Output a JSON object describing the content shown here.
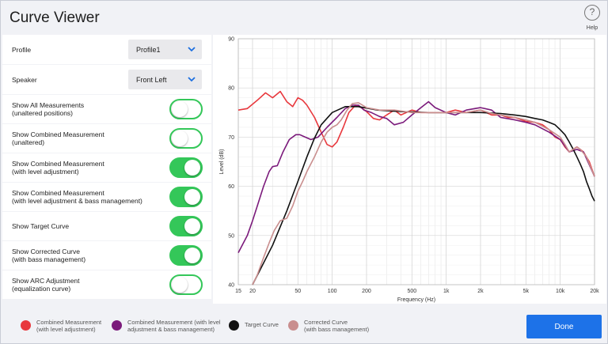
{
  "window": {
    "title": "Curve Viewer",
    "help_icon": "?",
    "help_label": "Help"
  },
  "settings": {
    "profile": {
      "label": "Profile",
      "value": "Profile1"
    },
    "speaker": {
      "label": "Speaker",
      "value": "Front Left"
    },
    "toggles": [
      {
        "label": "Show All Measurements",
        "sub": "(unaltered  positions)",
        "on": false
      },
      {
        "label": "Show Combined Measurement",
        "sub": "(unaltered)",
        "on": false
      },
      {
        "label": "Show Combined Measurement",
        "sub": "(with level adjustment)",
        "on": true
      },
      {
        "label": "Show Combined Measurement",
        "sub": "(with level adjustment & bass management)",
        "on": true
      },
      {
        "label": "Show Target Curve",
        "sub": "",
        "on": true
      },
      {
        "label": "Show Corrected Curve",
        "sub": "(with bass management)",
        "on": true
      },
      {
        "label": "Show ARC Adjustment",
        "sub": "(equalization curve)",
        "on": false
      }
    ]
  },
  "chart_data": {
    "type": "line",
    "xscale": "log",
    "xlim": [
      15,
      20000
    ],
    "ylim": [
      40,
      90
    ],
    "xlabel": "Frequency (Hz)",
    "ylabel": "Level (dB)",
    "x_ticks": [
      "15",
      "20",
      "50",
      "100",
      "200",
      "500",
      "1k",
      "2k",
      "5k",
      "10k",
      "20k"
    ],
    "x_tick_values": [
      15,
      20,
      50,
      100,
      200,
      500,
      1000,
      2000,
      5000,
      10000,
      20000
    ],
    "y_ticks": [
      40,
      50,
      60,
      70,
      80,
      90
    ],
    "grid": true,
    "series": [
      {
        "name": "Combined Measurement (with level adjustment)",
        "color": "#e8383d",
        "points": [
          [
            15,
            75.5
          ],
          [
            18,
            75.8
          ],
          [
            22,
            77.5
          ],
          [
            26,
            79
          ],
          [
            30,
            78
          ],
          [
            35,
            79.3
          ],
          [
            40,
            77.2
          ],
          [
            45,
            76.2
          ],
          [
            50,
            78
          ],
          [
            55,
            77.5
          ],
          [
            60,
            76.5
          ],
          [
            70,
            74
          ],
          [
            80,
            71
          ],
          [
            90,
            68.5
          ],
          [
            100,
            68
          ],
          [
            110,
            69
          ],
          [
            125,
            72
          ],
          [
            140,
            75
          ],
          [
            160,
            76.5
          ],
          [
            180,
            76
          ],
          [
            200,
            75.2
          ],
          [
            230,
            73.8
          ],
          [
            260,
            73.5
          ],
          [
            300,
            74.5
          ],
          [
            350,
            75.5
          ],
          [
            400,
            74.5
          ],
          [
            500,
            75.5
          ],
          [
            600,
            75
          ],
          [
            700,
            75
          ],
          [
            800,
            75
          ],
          [
            1000,
            75
          ],
          [
            1200,
            75.5
          ],
          [
            1500,
            75
          ],
          [
            2000,
            75.5
          ],
          [
            2500,
            74.5
          ],
          [
            3000,
            74.5
          ],
          [
            3500,
            74
          ],
          [
            4000,
            74
          ],
          [
            5000,
            73.2
          ],
          [
            6000,
            73
          ],
          [
            7000,
            72.5
          ],
          [
            8000,
            71.5
          ],
          [
            9000,
            70
          ],
          [
            10000,
            69.5
          ],
          [
            11000,
            68
          ],
          [
            12000,
            67
          ],
          [
            13000,
            67.5
          ],
          [
            14000,
            68
          ],
          [
            15000,
            67.5
          ],
          [
            16000,
            67
          ],
          [
            18000,
            65
          ],
          [
            20000,
            62
          ]
        ]
      },
      {
        "name": "Combined Measurement (with level adjustment & bass management)",
        "color": "#7b1a7b",
        "points": [
          [
            15,
            46.5
          ],
          [
            18,
            50
          ],
          [
            20,
            53
          ],
          [
            22,
            56
          ],
          [
            25,
            60
          ],
          [
            28,
            63
          ],
          [
            30,
            64
          ],
          [
            33,
            64.2
          ],
          [
            37,
            67
          ],
          [
            42,
            69.5
          ],
          [
            48,
            70.5
          ],
          [
            52,
            70.5
          ],
          [
            58,
            70
          ],
          [
            65,
            69.5
          ],
          [
            75,
            70
          ],
          [
            90,
            72
          ],
          [
            110,
            74
          ],
          [
            130,
            75.8
          ],
          [
            150,
            76.5
          ],
          [
            170,
            76.5
          ],
          [
            190,
            75.5
          ],
          [
            220,
            75
          ],
          [
            260,
            74.2
          ],
          [
            300,
            73.8
          ],
          [
            350,
            72.5
          ],
          [
            420,
            73
          ],
          [
            500,
            74.5
          ],
          [
            600,
            76
          ],
          [
            700,
            77.2
          ],
          [
            800,
            76
          ],
          [
            1000,
            75
          ],
          [
            1200,
            74.5
          ],
          [
            1500,
            75.5
          ],
          [
            2000,
            76
          ],
          [
            2500,
            75.5
          ],
          [
            3000,
            74
          ],
          [
            4000,
            73.5
          ],
          [
            5000,
            73
          ],
          [
            6000,
            72.5
          ],
          [
            8000,
            71
          ],
          [
            10000,
            69.5
          ],
          [
            12000,
            67
          ],
          [
            14000,
            67.5
          ],
          [
            16000,
            67
          ],
          [
            20000,
            62
          ]
        ]
      },
      {
        "name": "Target Curve",
        "color": "#111111",
        "points": [
          [
            20,
            40
          ],
          [
            30,
            48
          ],
          [
            40,
            55
          ],
          [
            50,
            61
          ],
          [
            60,
            66
          ],
          [
            70,
            69.8
          ],
          [
            80,
            72.5
          ],
          [
            100,
            75
          ],
          [
            130,
            76.2
          ],
          [
            170,
            76.2
          ],
          [
            250,
            75.5
          ],
          [
            400,
            75.2
          ],
          [
            700,
            75
          ],
          [
            1000,
            75
          ],
          [
            1500,
            75
          ],
          [
            2000,
            75
          ],
          [
            3000,
            74.8
          ],
          [
            4000,
            74.5
          ],
          [
            5000,
            74.2
          ],
          [
            6000,
            73.8
          ],
          [
            7000,
            73.5
          ],
          [
            8000,
            73
          ],
          [
            9000,
            72.5
          ],
          [
            10000,
            71.5
          ],
          [
            11000,
            70.5
          ],
          [
            12000,
            69
          ],
          [
            13000,
            67.5
          ],
          [
            14000,
            66
          ],
          [
            15000,
            64.5
          ],
          [
            16000,
            63
          ],
          [
            17000,
            61
          ],
          [
            18000,
            59.5
          ],
          [
            19000,
            58
          ],
          [
            20000,
            57
          ]
        ]
      },
      {
        "name": "Corrected Curve (with bass management)",
        "color": "#c98e8e",
        "points": [
          [
            20,
            40
          ],
          [
            22,
            42
          ],
          [
            25,
            45.5
          ],
          [
            28,
            48.5
          ],
          [
            31,
            51
          ],
          [
            35,
            53
          ],
          [
            40,
            53.5
          ],
          [
            45,
            56
          ],
          [
            50,
            59
          ],
          [
            55,
            61
          ],
          [
            60,
            63
          ],
          [
            70,
            66
          ],
          [
            80,
            69
          ],
          [
            90,
            71
          ],
          [
            100,
            72
          ],
          [
            110,
            72.5
          ],
          [
            120,
            73.5
          ],
          [
            135,
            75.5
          ],
          [
            150,
            76.8
          ],
          [
            170,
            77
          ],
          [
            200,
            76
          ],
          [
            260,
            75.5
          ],
          [
            350,
            75.5
          ],
          [
            500,
            75
          ],
          [
            700,
            75
          ],
          [
            1000,
            75
          ],
          [
            1500,
            75
          ],
          [
            2000,
            75.5
          ],
          [
            2500,
            74.8
          ],
          [
            3000,
            74.5
          ],
          [
            4000,
            74
          ],
          [
            5000,
            73.5
          ],
          [
            6000,
            73
          ],
          [
            8000,
            71.5
          ],
          [
            10000,
            70
          ],
          [
            11000,
            68.5
          ],
          [
            12000,
            67
          ],
          [
            13000,
            67.5
          ],
          [
            14000,
            68
          ],
          [
            15000,
            67.5
          ],
          [
            17000,
            66
          ],
          [
            20000,
            62
          ]
        ]
      }
    ]
  },
  "legend": [
    {
      "line1": "Combined Measurement",
      "line2": "(with level adjustment)",
      "color": "#e8383d"
    },
    {
      "line1": "Combined Measurement (with level",
      "line2": "adjustment & bass management)",
      "color": "#7b1a7b"
    },
    {
      "line1": "Target Curve",
      "line2": "",
      "color": "#111111"
    },
    {
      "line1": "Corrected Curve",
      "line2": "(with bass management)",
      "color": "#c98e8e"
    }
  ],
  "done_label": "Done"
}
